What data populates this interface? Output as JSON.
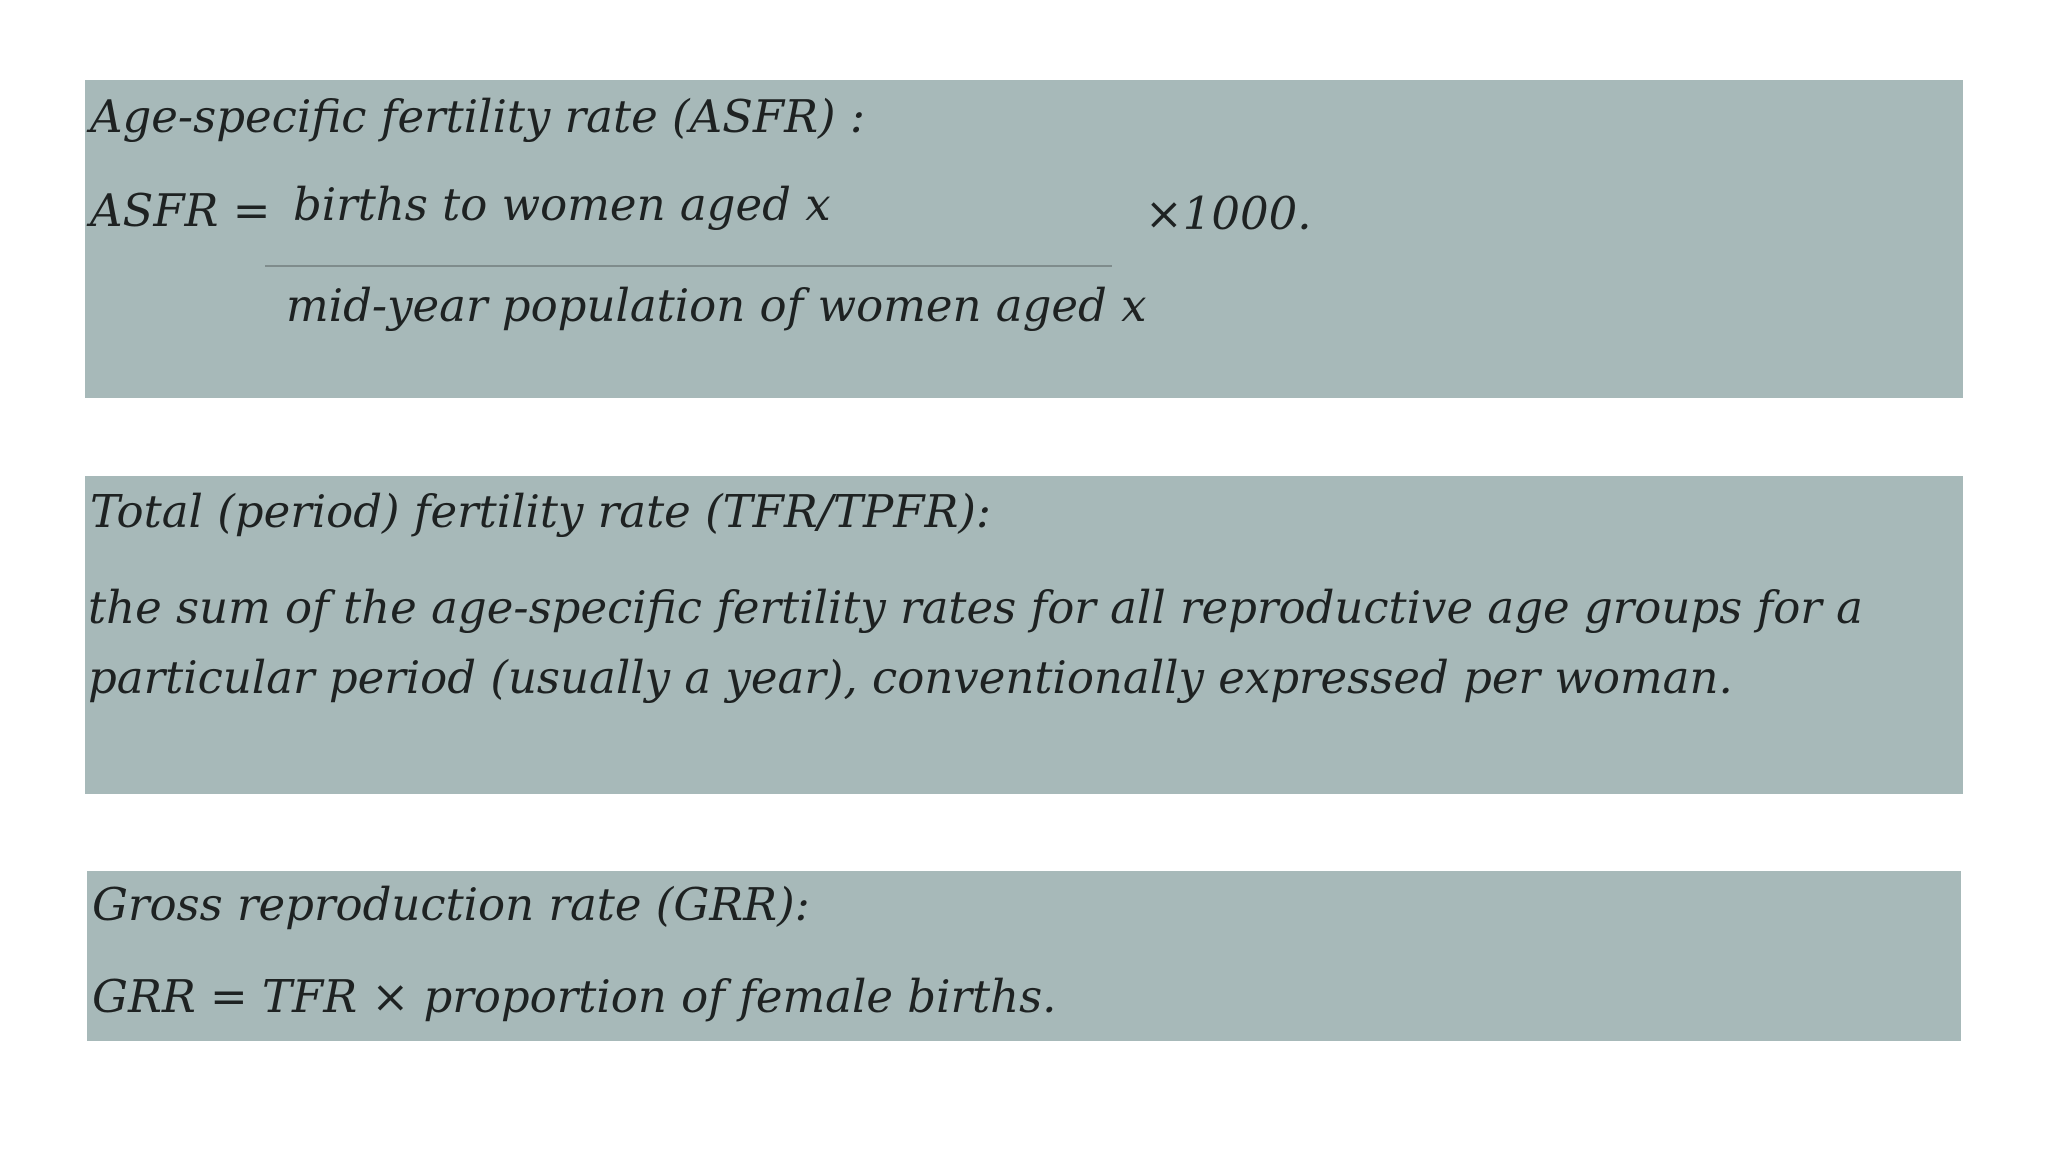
{
  "asfr": {
    "heading": "Age-specific fertility rate (ASFR) :",
    "lhs": "ASFR =",
    "numerator": "births to women aged x",
    "denominator": "mid-year population of women aged x",
    "multiplier": "×1000."
  },
  "tfr": {
    "heading": "Total (period) fertility rate (TFR/TPFR):",
    "body": "the sum of the age-specific fertility rates for all reproductive age groups for a particular period (usually a year), conventionally expressed per woman."
  },
  "grr": {
    "heading": "Gross reproduction rate (GRR):",
    "formula": "GRR = TFR × proportion of female births."
  },
  "colors": {
    "box_background": "#a7b9b9",
    "text": "#1e2222",
    "page_background": "#ffffff"
  }
}
